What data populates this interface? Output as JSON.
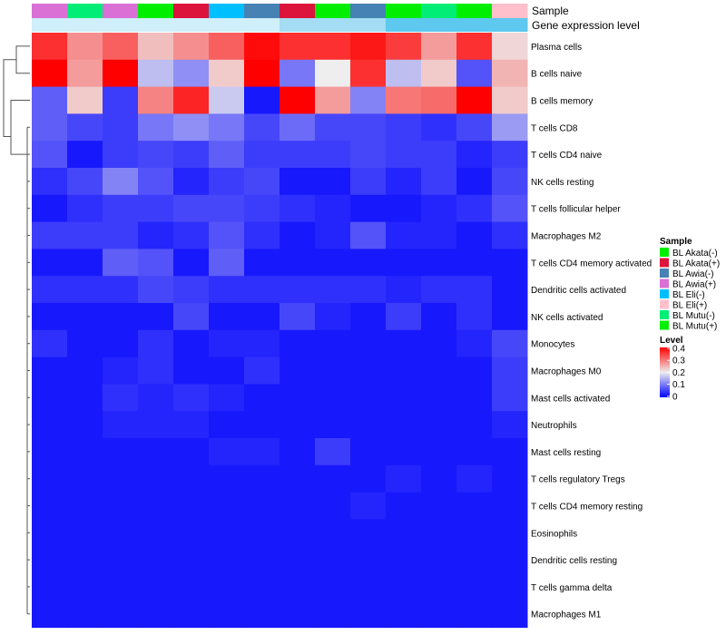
{
  "chart_data": {
    "type": "heatmap",
    "title": "",
    "annotation_rows": [
      "Sample",
      "Gene expression level"
    ],
    "column_samples": [
      "BL Awia(+)",
      "BL Mutu(-)",
      "BL Awia(+)",
      "BL Akata(-)",
      "BL Akata(+)",
      "BL Eli(-)",
      "BL Awia(-)",
      "BL Akata(+)",
      "BL Akata(-)",
      "BL Awia(-)",
      "BL Akata(-)",
      "BL Mutu(-)",
      "BL Mutu(+)",
      "BL Eli(+)"
    ],
    "column_expression_level": [
      "low",
      "low",
      "low",
      "low",
      "low",
      "low",
      "low",
      "mid",
      "mid",
      "mid",
      "high",
      "high",
      "high",
      "high"
    ],
    "rows": [
      "Plasma cells",
      "B cells naive",
      "B cells memory",
      "T cells CD8",
      "T cells CD4 naive",
      "NK cells resting",
      "T cells follicular helper",
      "Macrophages M2",
      "T cells CD4 memory activated",
      "Dendritic cells activated",
      "NK cells activated",
      "Monocytes",
      "Macrophages M0",
      "Mast cells activated",
      "Neutrophils",
      "Mast cells resting",
      "T cells regulatory  Tregs",
      "T cells CD4 memory resting",
      "Eosinophils",
      "Dendritic cells resting",
      "T cells gamma delta",
      "Macrophages M1"
    ],
    "values": [
      [
        0.36,
        0.28,
        0.32,
        0.24,
        0.28,
        0.32,
        0.39,
        0.36,
        0.36,
        0.38,
        0.35,
        0.27,
        0.36,
        0.22
      ],
      [
        0.42,
        0.27,
        0.42,
        0.16,
        0.12,
        0.23,
        0.42,
        0.1,
        0.2,
        0.36,
        0.16,
        0.23,
        0.07,
        0.25
      ],
      [
        0.08,
        0.23,
        0.05,
        0.29,
        0.37,
        0.17,
        0.02,
        0.42,
        0.27,
        0.11,
        0.3,
        0.31,
        0.42,
        0.23
      ],
      [
        0.08,
        0.06,
        0.05,
        0.1,
        0.12,
        0.1,
        0.06,
        0.09,
        0.06,
        0.06,
        0.05,
        0.04,
        0.06,
        0.13
      ],
      [
        0.07,
        0.02,
        0.05,
        0.06,
        0.05,
        0.08,
        0.05,
        0.05,
        0.05,
        0.06,
        0.05,
        0.05,
        0.03,
        0.05
      ],
      [
        0.04,
        0.06,
        0.11,
        0.07,
        0.03,
        0.05,
        0.06,
        0.02,
        0.02,
        0.05,
        0.03,
        0.05,
        0.02,
        0.06
      ],
      [
        0.02,
        0.04,
        0.05,
        0.05,
        0.06,
        0.06,
        0.05,
        0.04,
        0.03,
        0.02,
        0.02,
        0.03,
        0.04,
        0.07
      ],
      [
        0.05,
        0.05,
        0.05,
        0.03,
        0.04,
        0.07,
        0.04,
        0.02,
        0.03,
        0.07,
        0.03,
        0.03,
        0.02,
        0.04
      ],
      [
        0.02,
        0.02,
        0.08,
        0.07,
        0.02,
        0.08,
        0.02,
        0.02,
        0.02,
        0.02,
        0.02,
        0.02,
        0.02,
        0.02
      ],
      [
        0.04,
        0.04,
        0.04,
        0.06,
        0.05,
        0.04,
        0.04,
        0.04,
        0.04,
        0.04,
        0.03,
        0.04,
        0.04,
        0.02
      ],
      [
        0.02,
        0.02,
        0.02,
        0.02,
        0.06,
        0.02,
        0.02,
        0.06,
        0.03,
        0.02,
        0.05,
        0.02,
        0.04,
        0.02
      ],
      [
        0.04,
        0.02,
        0.02,
        0.04,
        0.02,
        0.03,
        0.03,
        0.02,
        0.02,
        0.02,
        0.02,
        0.02,
        0.03,
        0.06
      ],
      [
        0.02,
        0.02,
        0.03,
        0.04,
        0.02,
        0.02,
        0.04,
        0.02,
        0.02,
        0.02,
        0.02,
        0.02,
        0.02,
        0.05
      ],
      [
        0.02,
        0.02,
        0.04,
        0.03,
        0.04,
        0.03,
        0.02,
        0.02,
        0.02,
        0.02,
        0.02,
        0.02,
        0.02,
        0.05
      ],
      [
        0.02,
        0.02,
        0.03,
        0.03,
        0.03,
        0.02,
        0.02,
        0.02,
        0.02,
        0.02,
        0.02,
        0.02,
        0.02,
        0.03
      ],
      [
        0.02,
        0.02,
        0.02,
        0.02,
        0.02,
        0.03,
        0.03,
        0.02,
        0.05,
        0.02,
        0.02,
        0.02,
        0.02,
        0.02
      ],
      [
        0.02,
        0.02,
        0.02,
        0.02,
        0.02,
        0.02,
        0.02,
        0.02,
        0.02,
        0.02,
        0.03,
        0.02,
        0.03,
        0.02
      ],
      [
        0.02,
        0.02,
        0.02,
        0.02,
        0.02,
        0.02,
        0.02,
        0.02,
        0.02,
        0.03,
        0.02,
        0.02,
        0.02,
        0.02
      ],
      [
        0.02,
        0.02,
        0.02,
        0.02,
        0.02,
        0.02,
        0.02,
        0.02,
        0.02,
        0.02,
        0.02,
        0.02,
        0.02,
        0.02
      ],
      [
        0.02,
        0.02,
        0.02,
        0.02,
        0.02,
        0.02,
        0.02,
        0.02,
        0.02,
        0.02,
        0.02,
        0.02,
        0.02,
        0.02
      ],
      [
        0.02,
        0.02,
        0.02,
        0.02,
        0.02,
        0.02,
        0.02,
        0.02,
        0.02,
        0.02,
        0.02,
        0.02,
        0.02,
        0.02
      ],
      [
        0.02,
        0.02,
        0.02,
        0.02,
        0.02,
        0.02,
        0.02,
        0.02,
        0.02,
        0.02,
        0.02,
        0.02,
        0.02,
        0.02
      ]
    ],
    "color_scale": {
      "domain": [
        0,
        0.2,
        0.4
      ],
      "colors": [
        "#0000ff",
        "#eeeeee",
        "#ff0000"
      ],
      "ticks": [
        "0.4",
        "0.3",
        "0.2",
        "0.1",
        "0"
      ]
    },
    "expression_level_colors": {
      "low": "#cfeffa",
      "mid": "#a3dcf3",
      "high": "#5ec8ef"
    },
    "legend_sample": {
      "title": "Sample",
      "entries": [
        {
          "label": "BL Akata(-)",
          "color": "#00ee00"
        },
        {
          "label": "BL Akata(+)",
          "color": "#dc143c"
        },
        {
          "label": "BL Awia(-)",
          "color": "#4682b4"
        },
        {
          "label": "BL Awia(+)",
          "color": "#da70d6"
        },
        {
          "label": "BL Eli(-)",
          "color": "#00bfff"
        },
        {
          "label": "BL Eli(+)",
          "color": "#ffc0cb"
        },
        {
          "label": "BL Mutu(-)",
          "color": "#00ee76"
        },
        {
          "label": "BL Mutu(+)",
          "color": "#00ee00"
        }
      ]
    },
    "legend_level": {
      "title": "Level"
    },
    "dendrogram": "row-clustering",
    "legend_placement": "right"
  }
}
